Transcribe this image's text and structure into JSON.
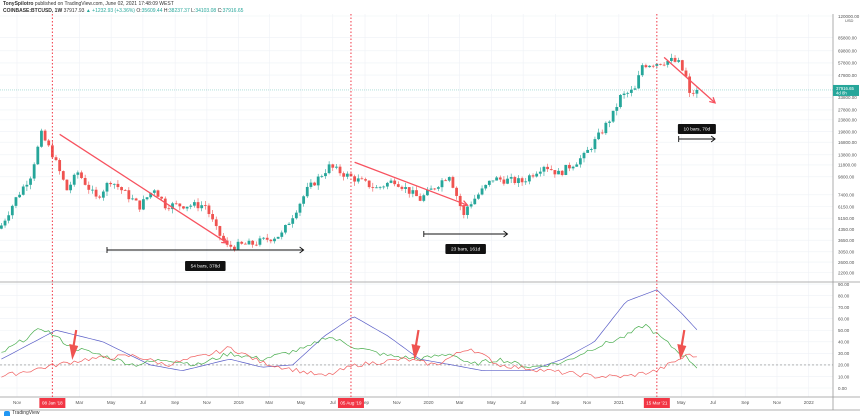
{
  "header": {
    "author": "TonySpilotro",
    "published": "published on TradingView.com, June 02, 2021 17:48:09 WEST",
    "symbol": "COINBASE:BTCUSD, 1W",
    "last": "37917.93",
    "change": "+1232.93 (+3.36%)",
    "open_label": "O:",
    "open": "35609.44",
    "high_label": "H:",
    "high": "38237.37",
    "low_label": "L:",
    "low": "34103.08",
    "close_label": "C:",
    "close": "37916.65"
  },
  "price_axis": {
    "currency": "USD",
    "ticks": [
      "120000.00",
      "85800.00",
      "69800.00",
      "57800.00",
      "47800.00",
      "33800.00",
      "27800.00",
      "23800.00",
      "19800.00",
      "16800.00",
      "13800.00",
      "11800.00",
      "9800.00",
      "7400.00",
      "6150.00",
      "5150.00",
      "4350.00",
      "3650.00",
      "3050.00",
      "2600.00",
      "2200.00"
    ],
    "last_price_tag": "37916.65",
    "countdown": "4d 8h"
  },
  "indicator_axis": {
    "ticks": [
      "90.00",
      "80.00",
      "70.00",
      "60.00",
      "50.00",
      "40.00",
      "30.00",
      "20.00",
      "10.00",
      "0.00"
    ],
    "reference_level": 20
  },
  "time_axis": {
    "ticks": [
      [
        "2017-11-01",
        "Nov"
      ],
      [
        "2018-03-01",
        "Mar"
      ],
      [
        "2018-05-01",
        "May"
      ],
      [
        "2018-07-01",
        "Jul"
      ],
      [
        "2018-09-01",
        "Sep"
      ],
      [
        "2018-11-01",
        "Nov"
      ],
      [
        "2019-01-01",
        "2019"
      ],
      [
        "2019-03-01",
        "Mar"
      ],
      [
        "2019-05-01",
        "May"
      ],
      [
        "2019-07-01",
        "Jul"
      ],
      [
        "2019-09-01",
        "Sep"
      ],
      [
        "2019-11-01",
        "Nov"
      ],
      [
        "2020-01-01",
        "2020"
      ],
      [
        "2020-03-01",
        "Mar"
      ],
      [
        "2020-05-01",
        "May"
      ],
      [
        "2020-07-01",
        "Jul"
      ],
      [
        "2020-09-01",
        "Sep"
      ],
      [
        "2020-11-01",
        "Nov"
      ],
      [
        "2021-01-01",
        "2021"
      ],
      [
        "2021-05-01",
        "May"
      ],
      [
        "2021-07-01",
        "Jul"
      ],
      [
        "2021-09-01",
        "Sep"
      ],
      [
        "2021-11-01",
        "Nov"
      ],
      [
        "2022-01-01",
        "2022"
      ]
    ],
    "markers": [
      [
        "2018-01-08",
        "08 Jan '18"
      ],
      [
        "2019-08-05",
        "05 Aug '19"
      ],
      [
        "2021-03-15",
        "15 Mar '21"
      ]
    ]
  },
  "colors": {
    "up": "#26a69a",
    "down": "#ef5350",
    "marker": "#f23645",
    "arrow": "#f7525f",
    "blue": "#5b5fc7",
    "green": "#4caf50",
    "red": "#f06060",
    "grid": "#eef1f6"
  },
  "chart_data": {
    "type": "candlestick",
    "interval": "1W",
    "scale": "log",
    "ylim": [
      2200,
      120000
    ],
    "price_closes": [
      [
        "2017-10-02",
        4600
      ],
      [
        "2017-10-30",
        7000
      ],
      [
        "2017-11-27",
        10000
      ],
      [
        "2017-12-18",
        19000
      ],
      [
        "2018-01-08",
        14000
      ],
      [
        "2018-02-05",
        8000
      ],
      [
        "2018-02-26",
        10500
      ],
      [
        "2018-04-02",
        7000
      ],
      [
        "2018-04-30",
        9300
      ],
      [
        "2018-06-25",
        6200
      ],
      [
        "2018-07-23",
        8200
      ],
      [
        "2018-08-13",
        6300
      ],
      [
        "2018-10-29",
        6300
      ],
      [
        "2018-11-19",
        4300
      ],
      [
        "2018-12-10",
        3300
      ],
      [
        "2019-01-28",
        3450
      ],
      [
        "2019-03-25",
        4000
      ],
      [
        "2019-05-13",
        8000
      ],
      [
        "2019-06-24",
        11500
      ],
      [
        "2019-07-29",
        10000
      ],
      [
        "2019-09-23",
        8200
      ],
      [
        "2019-10-28",
        9300
      ],
      [
        "2019-12-16",
        6900
      ],
      [
        "2020-02-10",
        10200
      ],
      [
        "2020-03-09",
        5300
      ],
      [
        "2020-03-16",
        6200
      ],
      [
        "2020-05-04",
        9500
      ],
      [
        "2020-06-29",
        9100
      ],
      [
        "2020-08-10",
        11800
      ],
      [
        "2020-09-07",
        10300
      ],
      [
        "2020-10-26",
        13500
      ],
      [
        "2020-11-23",
        18500
      ],
      [
        "2020-12-21",
        26000
      ],
      [
        "2021-01-04",
        34000
      ],
      [
        "2021-02-01",
        38000
      ],
      [
        "2021-02-15",
        56000
      ],
      [
        "2021-03-15",
        58000
      ],
      [
        "2021-04-12",
        60000
      ],
      [
        "2021-04-26",
        57500
      ],
      [
        "2021-05-10",
        46000
      ],
      [
        "2021-05-17",
        35000
      ],
      [
        "2021-05-31",
        37916.65
      ]
    ],
    "indicator": {
      "reference_level": 20,
      "series": [
        {
          "color": "#5b5fc7",
          "points": [
            [
              "2017-10-02",
              25
            ],
            [
              "2018-01-15",
              50
            ],
            [
              "2018-04-15",
              40
            ],
            [
              "2018-07-15",
              20
            ],
            [
              "2018-09-15",
              15
            ],
            [
              "2018-12-15",
              25
            ],
            [
              "2019-02-15",
              18
            ],
            [
              "2019-04-15",
              20
            ],
            [
              "2019-06-15",
              45
            ],
            [
              "2019-08-10",
              62
            ],
            [
              "2019-10-15",
              45
            ],
            [
              "2019-12-15",
              25
            ],
            [
              "2020-02-15",
              20
            ],
            [
              "2020-04-15",
              15
            ],
            [
              "2020-07-15",
              15
            ],
            [
              "2020-09-15",
              25
            ],
            [
              "2020-11-15",
              40
            ],
            [
              "2021-01-15",
              75
            ],
            [
              "2021-03-15",
              85
            ],
            [
              "2021-05-01",
              65
            ],
            [
              "2021-06-01",
              50
            ]
          ]
        },
        {
          "color": "#4caf50",
          "points": [
            [
              "2017-10-02",
              30
            ],
            [
              "2017-12-20",
              52
            ],
            [
              "2018-02-15",
              35
            ],
            [
              "2018-04-15",
              28
            ],
            [
              "2018-06-15",
              20
            ],
            [
              "2018-08-15",
              25
            ],
            [
              "2018-10-15",
              20
            ],
            [
              "2018-12-15",
              30
            ],
            [
              "2019-02-15",
              25
            ],
            [
              "2019-05-15",
              35
            ],
            [
              "2019-06-20",
              45
            ],
            [
              "2019-08-15",
              35
            ],
            [
              "2019-10-15",
              28
            ],
            [
              "2019-12-15",
              25
            ],
            [
              "2020-02-15",
              30
            ],
            [
              "2020-03-20",
              20
            ],
            [
              "2020-05-15",
              25
            ],
            [
              "2020-07-15",
              18
            ],
            [
              "2020-09-15",
              22
            ],
            [
              "2020-11-15",
              35
            ],
            [
              "2021-01-15",
              45
            ],
            [
              "2021-02-20",
              55
            ],
            [
              "2021-04-15",
              35
            ],
            [
              "2021-05-15",
              25
            ],
            [
              "2021-06-01",
              18
            ]
          ]
        },
        {
          "color": "#f06060",
          "points": [
            [
              "2017-10-02",
              10
            ],
            [
              "2018-01-15",
              20
            ],
            [
              "2018-03-15",
              25
            ],
            [
              "2018-06-15",
              28
            ],
            [
              "2018-08-15",
              20
            ],
            [
              "2018-11-15",
              30
            ],
            [
              "2018-12-15",
              35
            ],
            [
              "2019-02-15",
              22
            ],
            [
              "2019-06-15",
              10
            ],
            [
              "2019-08-15",
              20
            ],
            [
              "2019-11-15",
              25
            ],
            [
              "2020-01-15",
              20
            ],
            [
              "2020-03-20",
              35
            ],
            [
              "2020-05-15",
              20
            ],
            [
              "2020-08-15",
              15
            ],
            [
              "2020-11-15",
              10
            ],
            [
              "2021-01-15",
              10
            ],
            [
              "2021-03-15",
              15
            ],
            [
              "2021-05-20",
              30
            ],
            [
              "2021-06-01",
              25
            ]
          ]
        }
      ]
    },
    "annotations": {
      "ranges": [
        {
          "from": "2018-04-23",
          "to": "2019-05-06",
          "label": "54 bars, 378d"
        },
        {
          "from": "2019-12-23",
          "to": "2020-06-01",
          "label": "23 bars, 161d"
        },
        {
          "from": "2021-04-26",
          "to": "2021-07-05",
          "label": "10 bars, 70d"
        }
      ],
      "trend_arrows": [
        {
          "from": [
            "2018-01-22",
            19000
          ],
          "to": [
            "2018-12-10",
            3500
          ]
        },
        {
          "from": [
            "2019-08-12",
            12300
          ],
          " to": [
            "2020-03-16",
            6300
          ]
        },
        {
          "from": [
            "2021-03-29",
            63000
          ],
          "to": [
            "2021-07-05",
            31000
          ]
        }
      ],
      "indicator_arrows": [
        "2018-02-19",
        "2019-12-09",
        "2021-05-03"
      ]
    }
  },
  "footer": {
    "brand": "TradingView"
  }
}
